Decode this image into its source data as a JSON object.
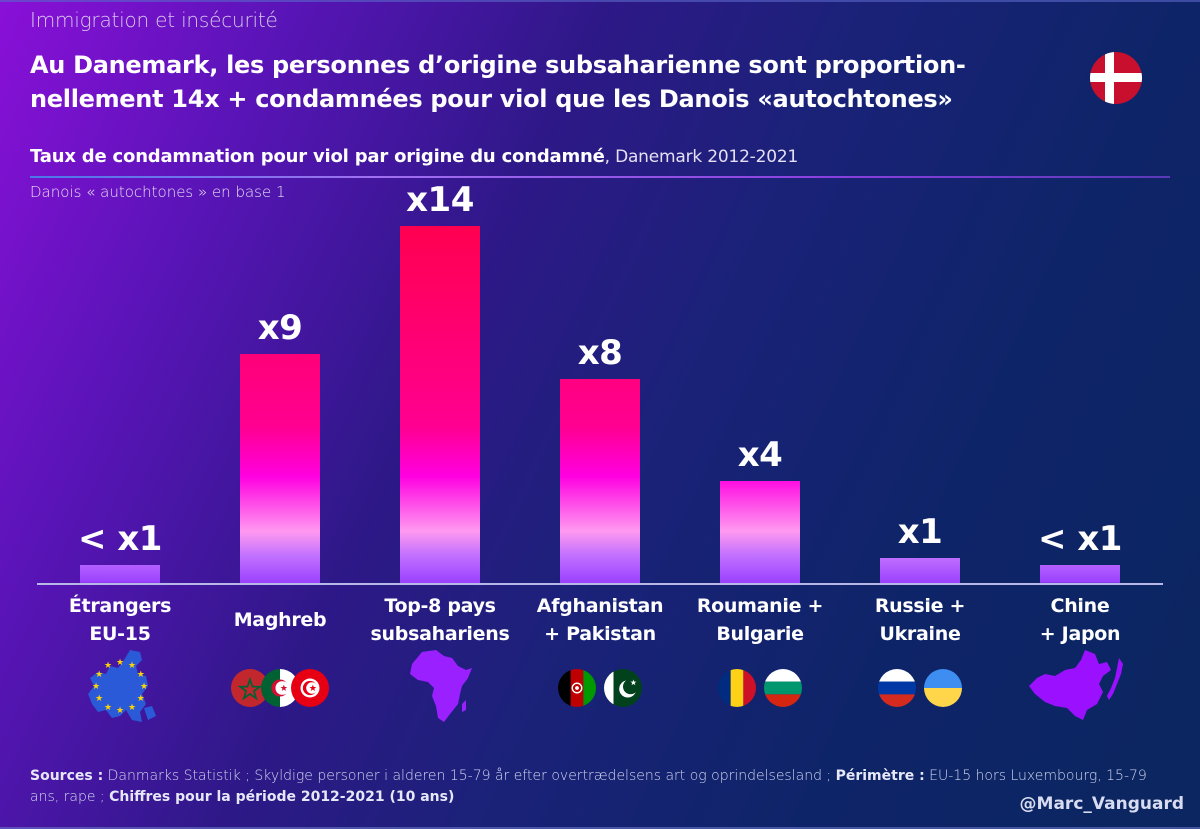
{
  "header": {
    "kicker": "Immigration et insécurité",
    "title": "Au Danemark, les personnes d’origine subsaharienne sont proportion-nellement 14x + condamnées pour viol que les Danois «autochtones»",
    "title_line1": "Au Danemark, les personnes d’origine subsaharienne sont proportion-",
    "title_line2": "nellement 14x + condamnées pour viol que les Danois «autochtones»",
    "flag_icon": "denmark-flag",
    "subtitle_bold": "Taux de condamnation pour viol par origine du condamné",
    "subtitle_regular": ", Danemark 2012-2021",
    "base_note": "Danois « autochtones » en base 1"
  },
  "colors": {
    "bar_top_high": "#ff0050",
    "bar_mid": "#ff00e0",
    "bar_light": "#ff99f0",
    "bar_bottom": "#9a40ff",
    "background_left": "#8a10d8",
    "background_right": "#0b2660",
    "axis": "#b8b8e8"
  },
  "chart_data": {
    "type": "bar",
    "title": "Taux de condamnation pour viol par origine du condamné, Danemark 2012-2021",
    "subtitle": "Danois « autochtones » en base 1",
    "xlabel": "",
    "ylabel": "",
    "ylim": [
      0,
      14
    ],
    "grid": false,
    "legend": "none",
    "categories": [
      "Étrangers EU-15",
      "Maghreb",
      "Top-8 pays subsahariens",
      "Afghanistan + Pakistan",
      "Roumanie + Bulgarie",
      "Russie + Ukraine",
      "Chine + Japon"
    ],
    "category_lines": [
      [
        "Étrangers",
        "EU-15"
      ],
      [
        "Maghreb",
        ""
      ],
      [
        "Top-8 pays",
        "subsahariens"
      ],
      [
        "Afghanistan",
        "+ Pakistan"
      ],
      [
        "Roumanie +",
        "Bulgarie"
      ],
      [
        "Russie +",
        "Ukraine"
      ],
      [
        "Chine",
        "+ Japon"
      ]
    ],
    "values": [
      0.7,
      9,
      14,
      8,
      4,
      1,
      0.7
    ],
    "data_labels": [
      "< x1",
      "x9",
      "x14",
      "x8",
      "x4",
      "x1",
      "< x1"
    ],
    "icons": [
      [
        "eu-map"
      ],
      [
        "morocco-flag",
        "algeria-flag",
        "tunisia-flag"
      ],
      [
        "africa-map"
      ],
      [
        "afghanistan-flag",
        "pakistan-flag"
      ],
      [
        "romania-flag",
        "bulgaria-flag"
      ],
      [
        "russia-flag",
        "ukraine-flag"
      ],
      [
        "china-japan-map"
      ]
    ]
  },
  "footer": {
    "sources_label": "Sources :",
    "sources_text": " Danmarks Statistik ; Skyldige personer i alderen 15-79 år efter overtrædelsens art og oprindelsesland ; ",
    "perimetre_label": "Périmètre :",
    "perimetre_text": " EU-15 hors Luxembourg, 15-79 ans, rape ; ",
    "period_text": "Chiffres pour la période 2012-2021 (10 ans)",
    "handle": "@Marc_Vanguard"
  }
}
